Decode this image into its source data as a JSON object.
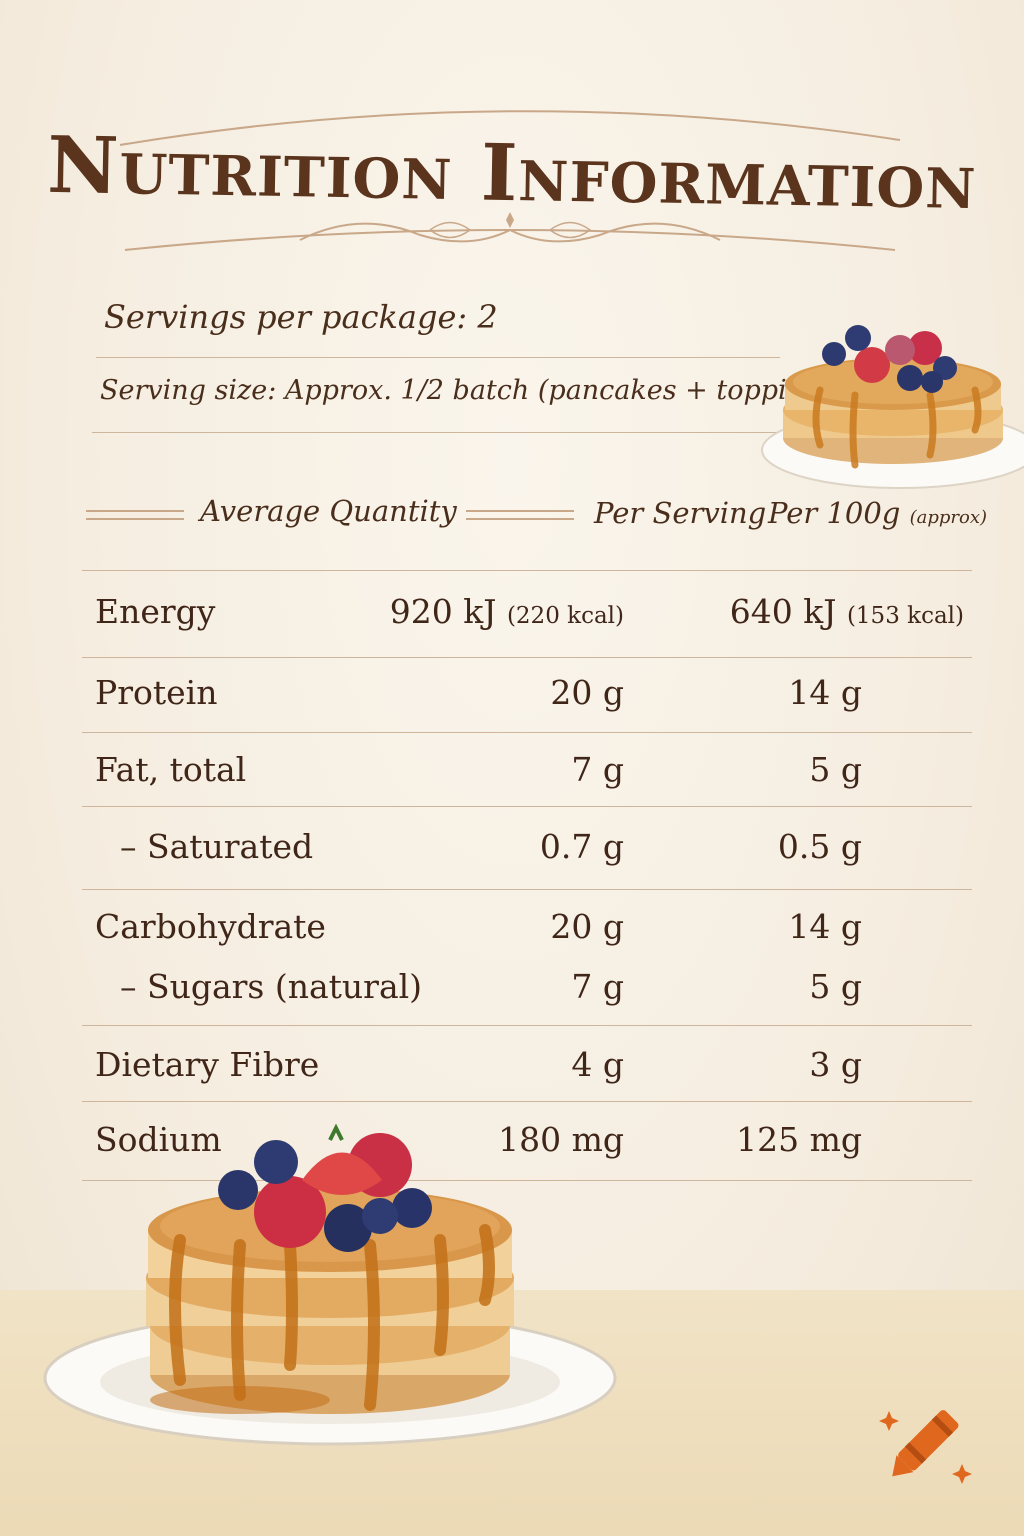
{
  "title": "Nutrition Information",
  "servings_per_package": "Servings per package: 2",
  "serving_size": "Serving size: Approx. 1/2 batch (pancakes + toppings)",
  "columns": {
    "average_quantity": "Average Quantity",
    "per_serving": "Per Serving",
    "per_100g": "Per 100g",
    "per_100g_note": "(approx)"
  },
  "rows": [
    {
      "label": "Energy",
      "per_serving": "920 kJ",
      "per_serving_note": "(220 kcal)",
      "per_100g": "640 kJ",
      "per_100g_note": "(153 kcal)"
    },
    {
      "label": "Protein",
      "per_serving": "20 g",
      "per_100g": "14 g"
    },
    {
      "label": "Fat, total",
      "per_serving": "7 g",
      "per_100g": "5 g"
    },
    {
      "label": "– Saturated",
      "per_serving": "0.7 g",
      "per_100g": "0.5 g"
    },
    {
      "label": "Carbohydrate",
      "per_serving": "20 g",
      "per_100g": "14 g"
    },
    {
      "label": "– Sugars (natural)",
      "per_serving": "7 g",
      "per_100g": "5 g"
    },
    {
      "label": "Dietary Fibre",
      "per_serving": "4 g",
      "per_100g": "3 g"
    },
    {
      "label": "Sodium",
      "per_serving": "180 mg",
      "per_100g": "125 mg"
    }
  ],
  "illustrations": {
    "small": "pancake-stack-with-berries",
    "large": "pancake-stack-with-berries-and-syrup",
    "corner_icon": "crayon-icon"
  },
  "colors": {
    "paper": "#f6efe3",
    "ink": "#4a2e1c",
    "rule": "#cdb69b",
    "syrup": "#c9761f",
    "pancake": "#e8b56a",
    "crayon": "#e0681e"
  }
}
